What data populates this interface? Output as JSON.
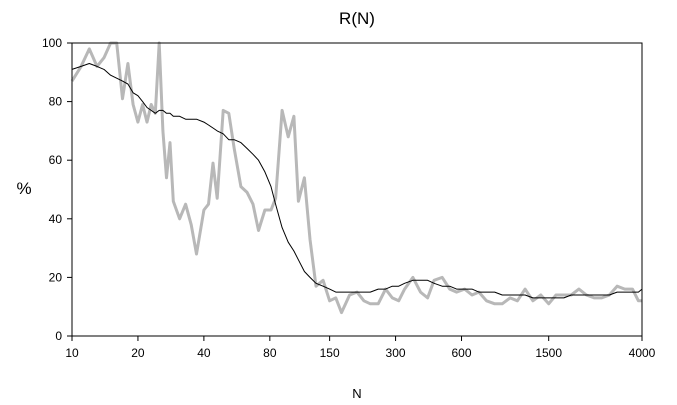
{
  "chart_data": {
    "type": "line",
    "title": "R(N)",
    "xlabel": "N",
    "ylabel": "%",
    "xscale": "log",
    "xlim": [
      10,
      4000
    ],
    "ylim": [
      0,
      100
    ],
    "xticks": [
      10,
      20,
      40,
      80,
      150,
      300,
      600,
      1500,
      4000
    ],
    "yticks": [
      0,
      20,
      40,
      60,
      80,
      100
    ],
    "grid": false,
    "legend": "none",
    "series": [
      {
        "color": "#b8b8b8",
        "x": [
          10,
          11,
          12,
          13,
          14,
          15,
          16,
          17,
          18,
          19,
          20,
          21,
          22,
          23,
          24,
          25,
          26,
          27,
          28,
          29,
          31,
          33,
          35,
          37,
          40,
          42,
          44,
          46,
          49,
          52,
          55,
          59,
          63,
          67,
          71,
          76,
          81,
          85,
          91,
          97,
          103,
          108,
          115,
          122,
          130,
          140,
          150,
          160,
          170,
          185,
          200,
          215,
          230,
          250,
          270,
          290,
          310,
          330,
          360,
          390,
          420,
          450,
          490,
          530,
          570,
          620,
          670,
          720,
          780,
          850,
          920,
          1000,
          1080,
          1170,
          1270,
          1380,
          1500,
          1620,
          1760,
          1900,
          2060,
          2230,
          2420,
          2620,
          2840,
          3080,
          3340,
          3620,
          3850,
          4000
        ],
        "y": [
          87,
          92,
          98,
          92,
          95,
          100,
          100,
          81,
          93,
          79,
          73,
          79,
          73,
          79,
          76,
          100,
          70,
          54,
          66,
          46,
          40,
          45,
          38,
          28,
          43,
          45,
          59,
          47,
          77,
          76,
          64,
          51,
          49,
          45,
          36,
          43,
          43,
          47,
          77,
          68,
          75,
          46,
          54,
          33,
          17,
          19,
          12,
          13,
          8,
          14,
          15,
          12,
          11,
          11,
          16,
          13,
          12,
          16,
          20,
          15,
          13,
          19,
          20,
          16,
          15,
          16,
          14,
          15,
          12,
          11,
          11,
          13,
          12,
          16,
          12,
          14,
          11,
          14,
          14,
          14,
          16,
          14,
          13,
          13,
          14,
          17,
          16,
          16,
          12,
          12
        ]
      },
      {
        "color": "#000000",
        "x": [
          10,
          11,
          12,
          13,
          14,
          15,
          16,
          17,
          18,
          19,
          20,
          21,
          22,
          23,
          24,
          25,
          26,
          27,
          28,
          29,
          31,
          33,
          35,
          37,
          40,
          42,
          44,
          46,
          49,
          52,
          55,
          59,
          63,
          67,
          71,
          76,
          81,
          85,
          91,
          97,
          103,
          108,
          115,
          122,
          130,
          140,
          150,
          160,
          170,
          185,
          200,
          215,
          230,
          250,
          270,
          290,
          310,
          330,
          360,
          390,
          420,
          450,
          490,
          530,
          570,
          620,
          670,
          720,
          780,
          850,
          920,
          1000,
          1080,
          1170,
          1270,
          1380,
          1500,
          1620,
          1760,
          1900,
          2060,
          2230,
          2420,
          2620,
          2840,
          3080,
          3340,
          3620,
          3850,
          4000
        ],
        "y": [
          91,
          92,
          93,
          92,
          91,
          89,
          88,
          87,
          86,
          83,
          82,
          80,
          78,
          77,
          76,
          77,
          77,
          76,
          76,
          75,
          75,
          74,
          74,
          74,
          73,
          72,
          71,
          70,
          69,
          67,
          67,
          66,
          64,
          62,
          60,
          56,
          51,
          45,
          37,
          32,
          29,
          26,
          22,
          20,
          18,
          17,
          16,
          15,
          15,
          15,
          15,
          15,
          15,
          16,
          16,
          17,
          17,
          18,
          19,
          19,
          19,
          18,
          17,
          17,
          16,
          16,
          16,
          15,
          15,
          15,
          14,
          14,
          14,
          14,
          13,
          13,
          13,
          13,
          13,
          14,
          14,
          14,
          14,
          14,
          14,
          15,
          15,
          15,
          15,
          16
        ]
      }
    ]
  }
}
